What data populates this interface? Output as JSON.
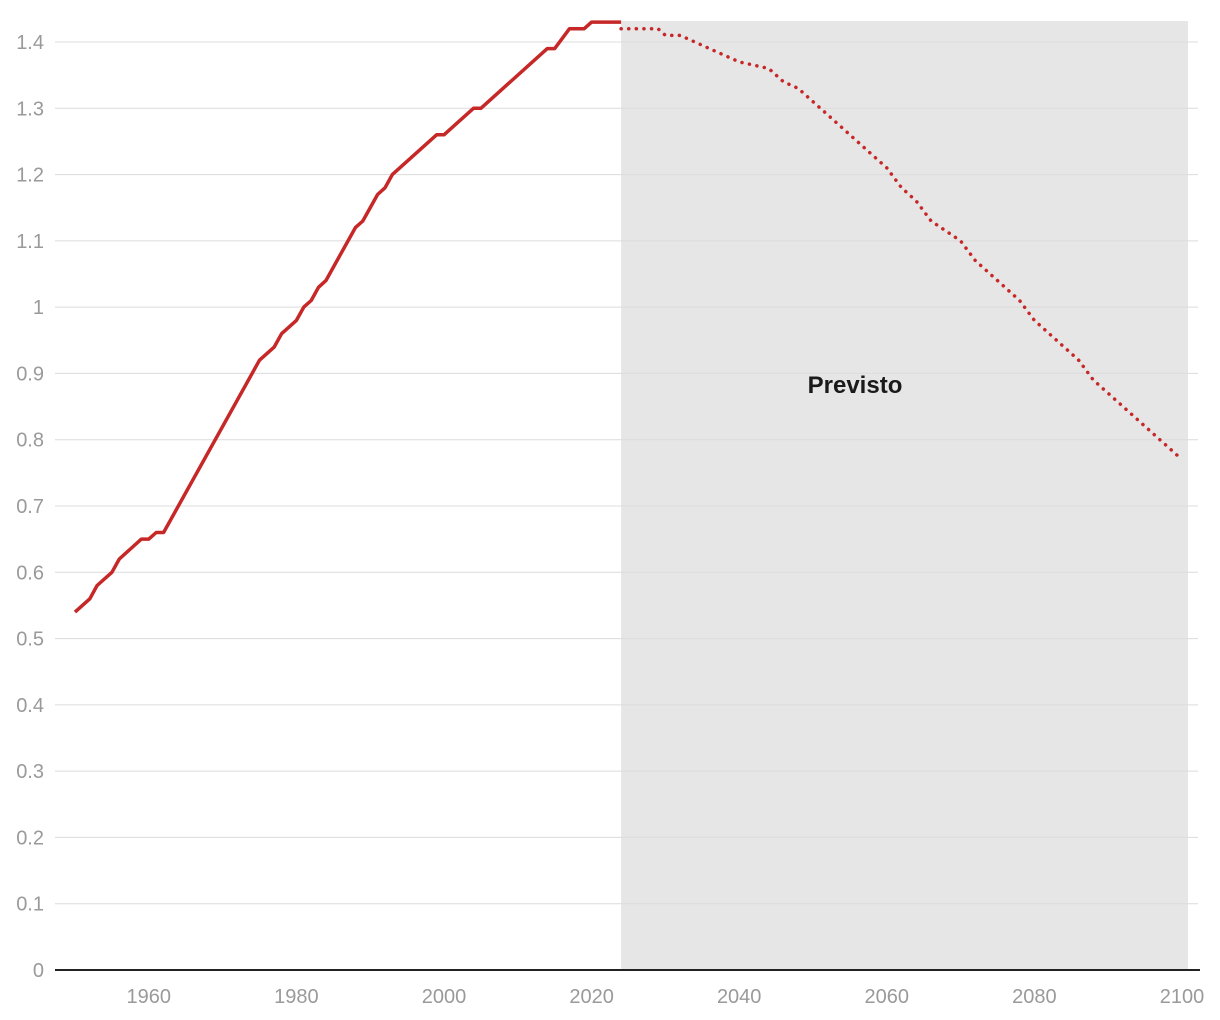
{
  "chart_data": {
    "type": "line",
    "xlim": [
      1948,
      2102
    ],
    "ylim": [
      0,
      1.43
    ],
    "x_ticks": [
      1960,
      1980,
      2000,
      2020,
      2040,
      2060,
      2080,
      2100
    ],
    "x_tick_labels": [
      "1960",
      "1980",
      "2000",
      "2020",
      "2040",
      "2060",
      "2080",
      "2100"
    ],
    "y_ticks": [
      0,
      0.1,
      0.2,
      0.3,
      0.4,
      0.5,
      0.6,
      0.7,
      0.8,
      0.9,
      1,
      1.1,
      1.2,
      1.3,
      1.4
    ],
    "y_tick_labels": [
      "0",
      "0.1",
      "0.2",
      "0.3",
      "0.4",
      "0.5",
      "0.6",
      "0.7",
      "0.8",
      "0.9",
      "1",
      "1.1",
      "1.2",
      "1.3",
      "1.4"
    ],
    "grid": true,
    "shaded_region": {
      "x_start": 2024,
      "x_end": 2100,
      "label": "Previsto",
      "color": "#e6e6e6"
    },
    "series": [
      {
        "style": "solid",
        "color": "#c62828",
        "x": [
          1950,
          1952,
          1953,
          1955,
          1956,
          1959,
          1960,
          1961,
          1962,
          1975,
          1977,
          1978,
          1980,
          1981,
          1982,
          1983,
          1984,
          1988,
          1989,
          1991,
          1992,
          1993,
          1999,
          2000,
          2004,
          2005,
          2014,
          2015,
          2017,
          2019,
          2020,
          2024
        ],
        "y": [
          0.54,
          0.56,
          0.58,
          0.6,
          0.62,
          0.65,
          0.65,
          0.66,
          0.66,
          0.92,
          0.94,
          0.96,
          0.98,
          1.0,
          1.01,
          1.03,
          1.04,
          1.12,
          1.13,
          1.17,
          1.18,
          1.2,
          1.26,
          1.26,
          1.3,
          1.3,
          1.39,
          1.39,
          1.42,
          1.42,
          1.43,
          1.43
        ]
      },
      {
        "style": "dotted",
        "color": "#c62828",
        "x": [
          2024,
          2029,
          2030,
          2032,
          2034,
          2038,
          2040,
          2044,
          2046,
          2048,
          2050,
          2052,
          2055,
          2058,
          2060,
          2062,
          2064,
          2066,
          2070,
          2072,
          2075,
          2078,
          2080,
          2084,
          2086,
          2088,
          2092,
          2094,
          2096,
          2098,
          2100
        ],
        "y": [
          1.42,
          1.42,
          1.41,
          1.41,
          1.4,
          1.38,
          1.37,
          1.36,
          1.34,
          1.33,
          1.31,
          1.29,
          1.26,
          1.23,
          1.21,
          1.18,
          1.16,
          1.13,
          1.1,
          1.07,
          1.04,
          1.01,
          0.98,
          0.94,
          0.92,
          0.89,
          0.85,
          0.83,
          0.81,
          0.79,
          0.77
        ]
      }
    ]
  }
}
